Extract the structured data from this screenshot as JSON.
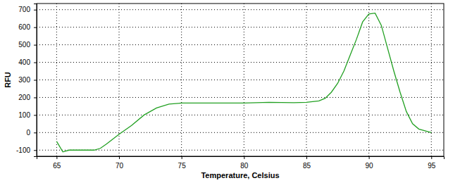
{
  "chart_data": {
    "type": "line",
    "x_label": "Temperature, Celsius",
    "y_label": "RFU",
    "x": [
      65,
      65.5,
      66,
      67,
      68,
      68.5,
      69,
      70,
      71,
      72,
      73,
      74,
      75,
      78,
      80,
      82,
      84,
      85,
      86,
      86.5,
      87,
      87.5,
      88,
      88.5,
      89,
      89.5,
      90,
      90.5,
      91,
      91.5,
      92,
      92.5,
      93,
      93.5,
      94,
      95
    ],
    "values": [
      -50,
      -110,
      -100,
      -100,
      -100,
      -90,
      -65,
      -10,
      40,
      100,
      140,
      162,
      168,
      168,
      168,
      172,
      170,
      172,
      180,
      195,
      230,
      280,
      350,
      440,
      530,
      630,
      675,
      680,
      610,
      480,
      350,
      230,
      120,
      50,
      20,
      0
    ],
    "color": "#22a022",
    "xlim": [
      63.4,
      96
    ],
    "ylim": [
      -135,
      735
    ],
    "xticks": [
      65,
      70,
      75,
      80,
      85,
      90,
      95
    ],
    "yticks": [
      -100,
      0,
      100,
      200,
      300,
      400,
      500,
      600,
      700
    ],
    "grid": true
  }
}
